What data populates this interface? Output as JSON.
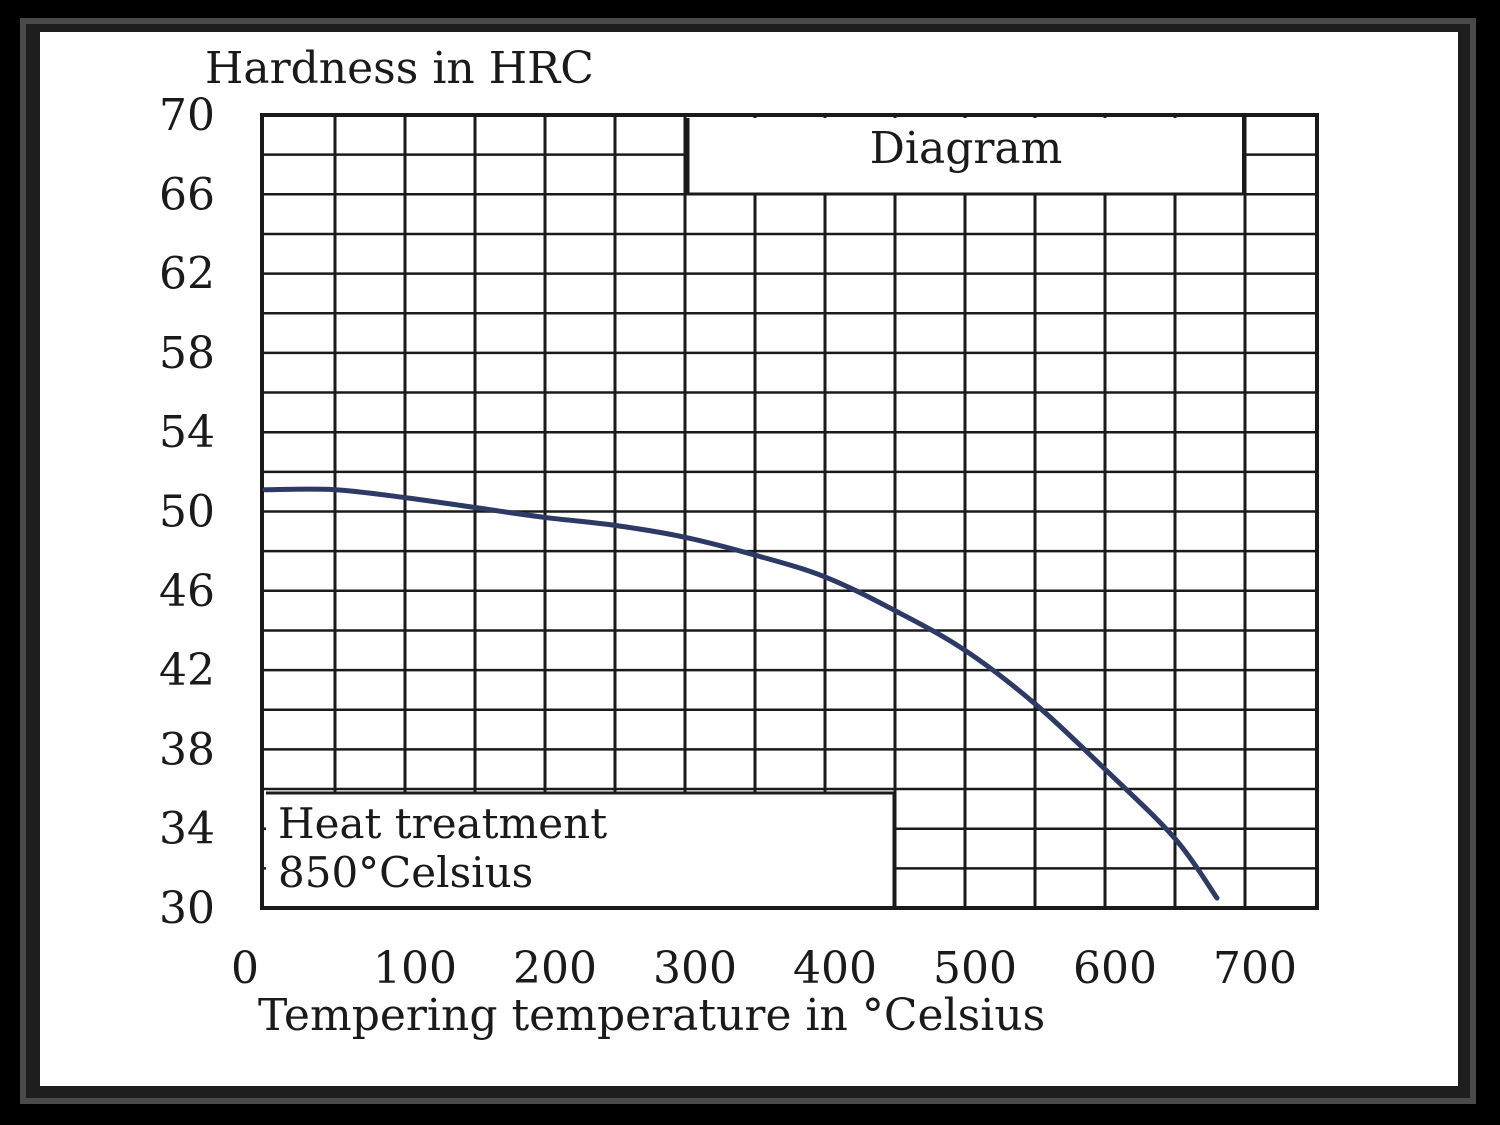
{
  "chart_data": {
    "type": "line",
    "title": "",
    "ylabel": "Hardness in HRC",
    "xlabel": "Tempering temperature in °Celsius",
    "xlim": [
      0,
      750
    ],
    "ylim": [
      30,
      70
    ],
    "x_ticks": [
      0,
      100,
      200,
      300,
      400,
      500,
      600,
      700
    ],
    "y_ticks": [
      70,
      66,
      62,
      58,
      54,
      50,
      46,
      42,
      38,
      34,
      30
    ],
    "grid": true,
    "series": [
      {
        "x": [
          0,
          50,
          100,
          150,
          200,
          250,
          300,
          350,
          400,
          450,
          500,
          550,
          600,
          650,
          680
        ],
        "y": [
          51.1,
          51.1,
          50.7,
          50.2,
          49.7,
          49.3,
          48.7,
          47.8,
          46.7,
          45.0,
          43.0,
          40.3,
          37.0,
          33.5,
          30.5
        ],
        "color": "#2e3a66"
      }
    ],
    "annotations": {
      "top_box": "Diagram",
      "bottom_box_line1": "Heat treatment",
      "bottom_box_line2": "850°Celsius"
    }
  }
}
